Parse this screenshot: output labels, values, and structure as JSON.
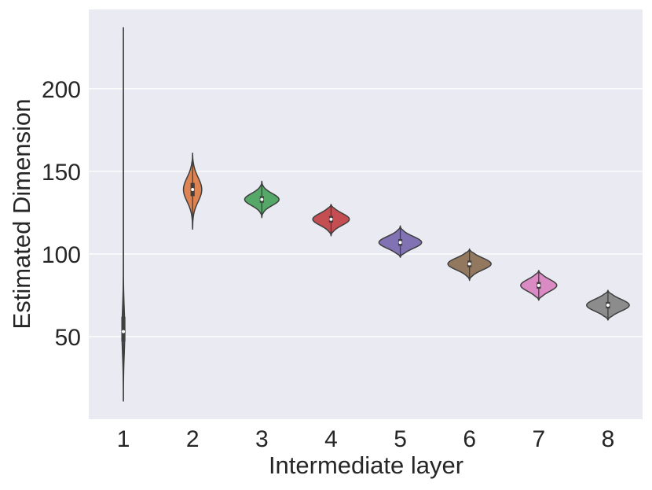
{
  "chart_data": {
    "type": "violin",
    "xlabel": "Intermediate layer",
    "ylabel": "Estimated Dimension",
    "categories": [
      "1",
      "2",
      "3",
      "4",
      "5",
      "6",
      "7",
      "8"
    ],
    "yticks": [
      50,
      100,
      150,
      200
    ],
    "ylim": [
      0,
      248
    ],
    "grid": true,
    "series": [
      {
        "category": "1",
        "color": "#4c72b0",
        "min": 11,
        "q1": 47,
        "median": 53,
        "q3": 62,
        "max": 237,
        "width": 0.05
      },
      {
        "category": "2",
        "color": "#dd8452",
        "min": 115,
        "q1": 135,
        "median": 139,
        "q3": 143,
        "max": 161,
        "width": 0.33
      },
      {
        "category": "3",
        "color": "#55a868",
        "min": 122,
        "q1": 131,
        "median": 133,
        "q3": 135,
        "max": 144,
        "width": 0.62
      },
      {
        "category": "4",
        "color": "#c44e52",
        "min": 111,
        "q1": 119,
        "median": 121,
        "q3": 123,
        "max": 130,
        "width": 0.66
      },
      {
        "category": "5",
        "color": "#8172b3",
        "min": 98,
        "q1": 105,
        "median": 107,
        "q3": 109,
        "max": 117,
        "width": 0.77
      },
      {
        "category": "6",
        "color": "#937860",
        "min": 84,
        "q1": 92,
        "median": 94,
        "q3": 96,
        "max": 103,
        "width": 0.78
      },
      {
        "category": "7",
        "color": "#da8bc3",
        "min": 72,
        "q1": 79,
        "median": 81,
        "q3": 83,
        "max": 90,
        "width": 0.65
      },
      {
        "category": "8",
        "color": "#8c8c8c",
        "min": 60,
        "q1": 67,
        "median": 69,
        "q3": 71,
        "max": 78,
        "width": 0.77
      }
    ]
  }
}
